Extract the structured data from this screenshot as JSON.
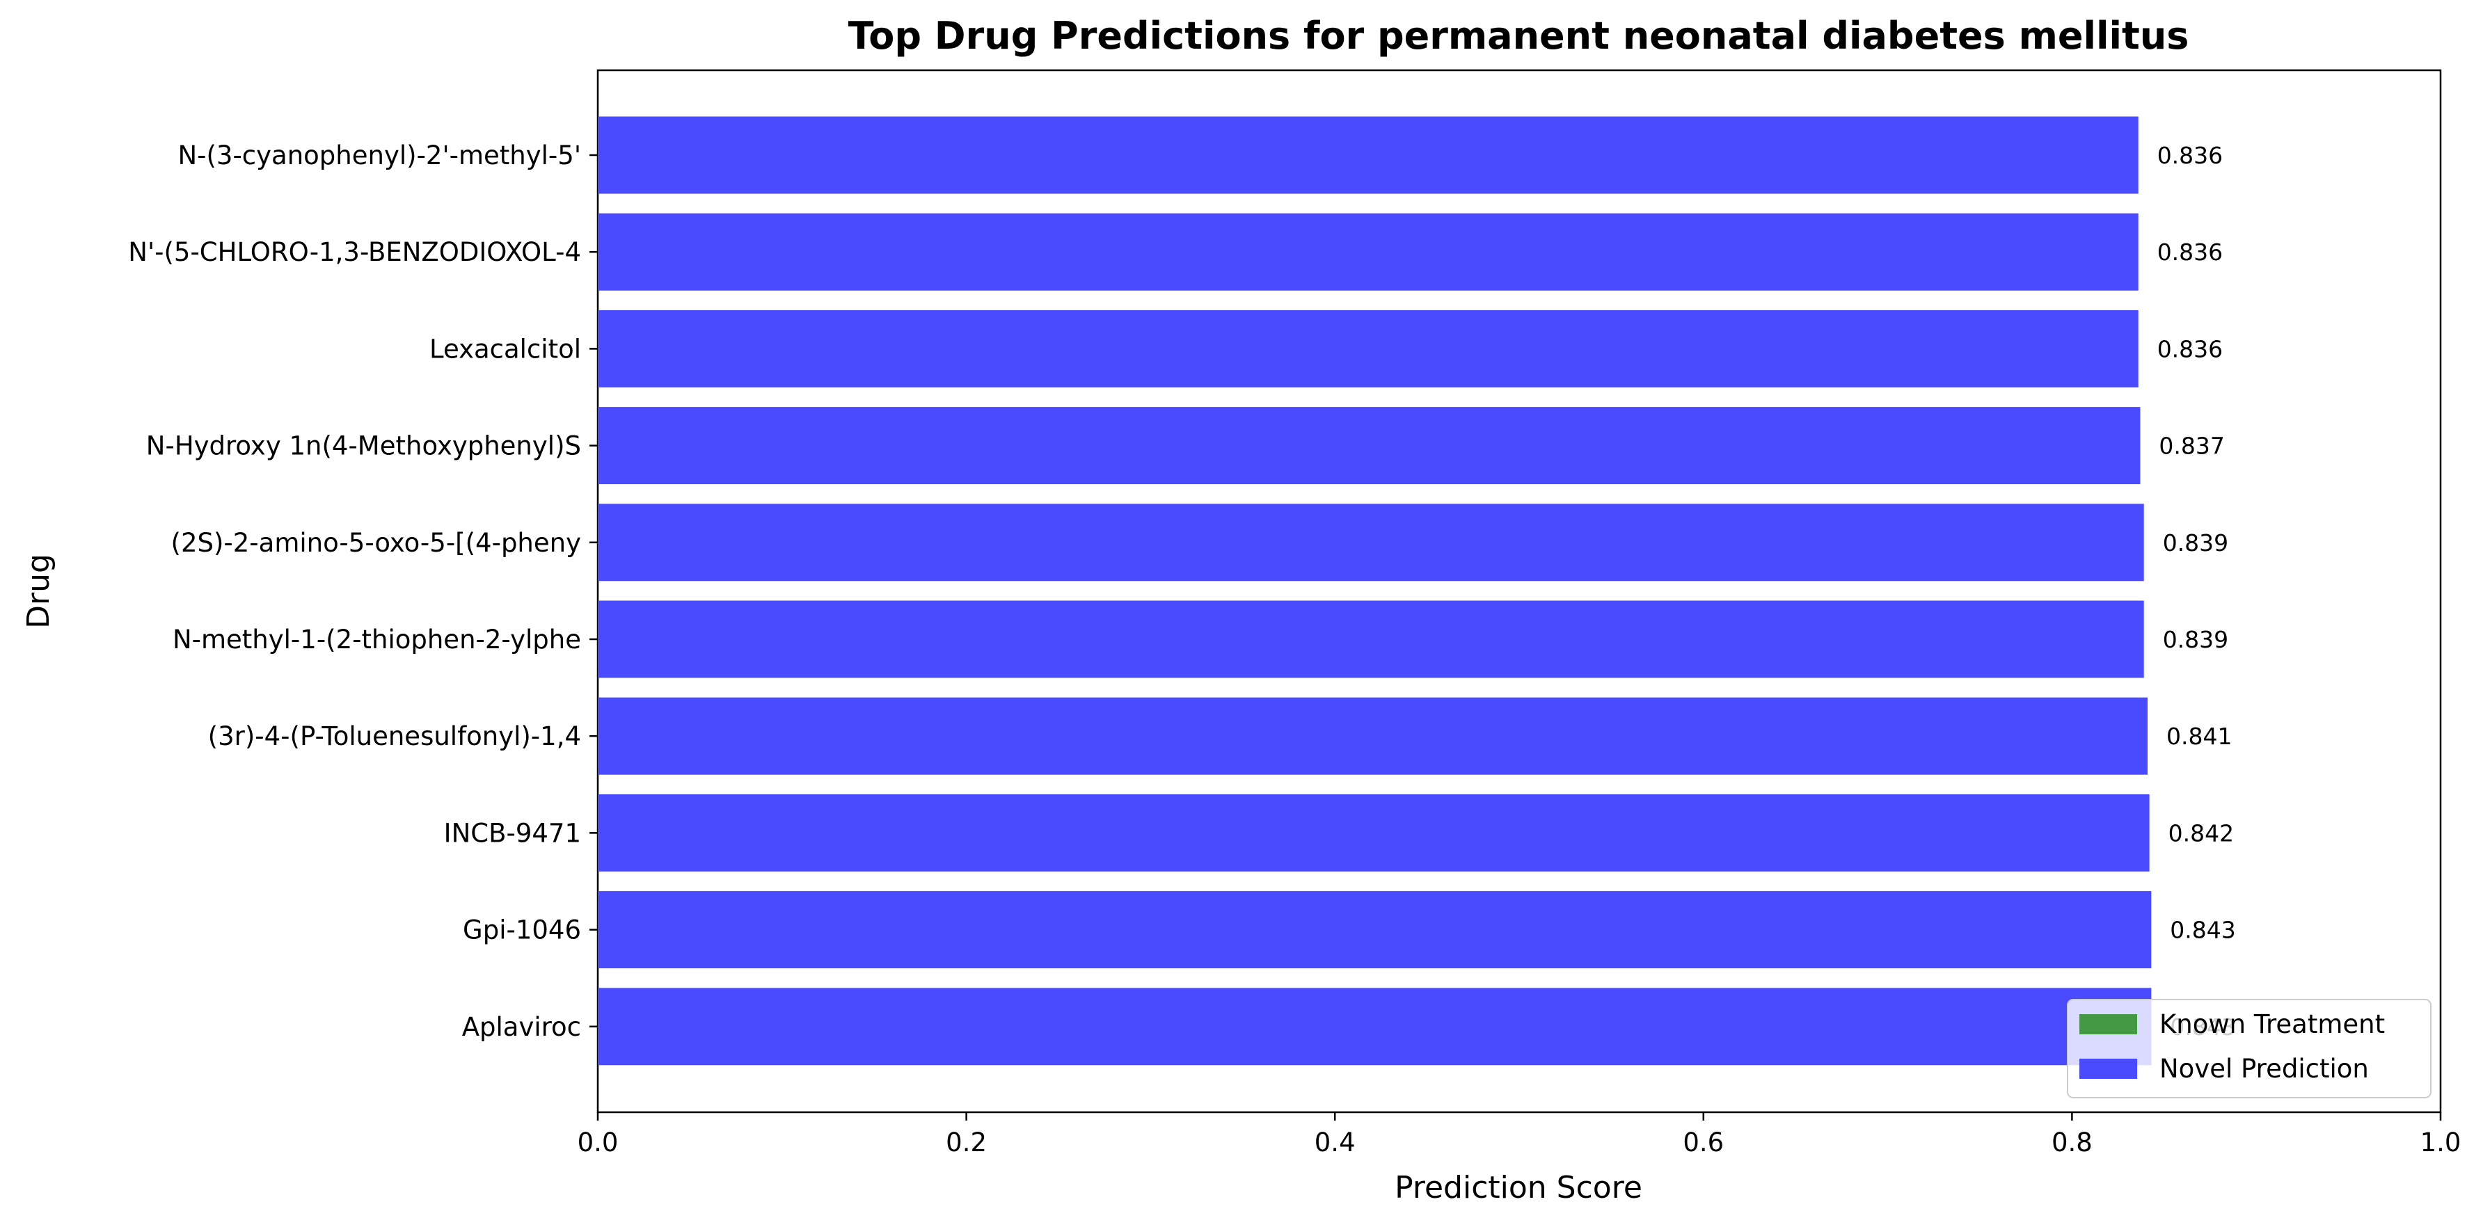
{
  "chart_data": {
    "type": "bar",
    "orientation": "horizontal",
    "title": "Top Drug Predictions for permanent neonatal diabetes mellitus",
    "xlabel": "Prediction Score",
    "ylabel": "Drug",
    "xlim": [
      0.0,
      1.0
    ],
    "xticks": [
      "0.0",
      "0.2",
      "0.4",
      "0.6",
      "0.8",
      "1.0"
    ],
    "grid": false,
    "legend_position": "lower-right",
    "categories": [
      "N-(3-cyanophenyl)-2'-methyl-5'",
      "N'-(5-CHLORO-1,3-BENZODIOXOL-4",
      "Lexacalcitol",
      "N-Hydroxy 1n(4-Methoxyphenyl)S",
      "(2S)-2-amino-5-oxo-5-[(4-pheny",
      "N-methyl-1-(2-thiophen-2-ylphe",
      "(3r)-4-(P-Toluenesulfonyl)-1,4",
      "INCB-9471",
      "Gpi-1046",
      "Aplaviroc"
    ],
    "values": [
      0.836,
      0.836,
      0.836,
      0.837,
      0.839,
      0.839,
      0.841,
      0.842,
      0.843,
      0.843
    ],
    "value_labels": [
      "0.836",
      "0.836",
      "0.836",
      "0.837",
      "0.839",
      "0.839",
      "0.841",
      "0.842",
      "0.843",
      "0.843"
    ],
    "bar_series": [
      "Novel Prediction",
      "Novel Prediction",
      "Novel Prediction",
      "Novel Prediction",
      "Novel Prediction",
      "Novel Prediction",
      "Novel Prediction",
      "Novel Prediction",
      "Novel Prediction",
      "Novel Prediction"
    ],
    "legend": [
      {
        "label": "Known Treatment",
        "color": "#449944"
      },
      {
        "label": "Novel Prediction",
        "color": "#4a4aff"
      }
    ]
  }
}
